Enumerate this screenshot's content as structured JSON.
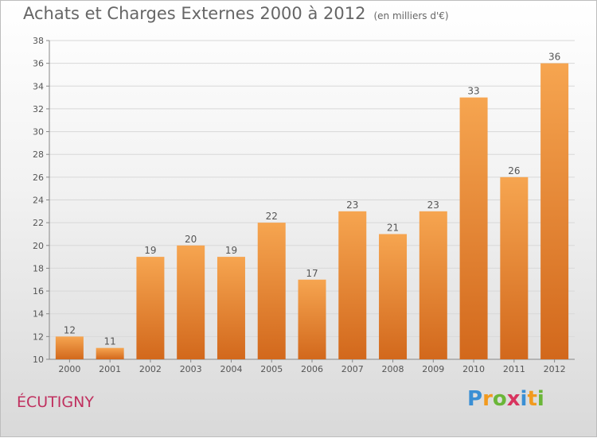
{
  "title": "Achats et Charges Externes 2000 à 2012",
  "subtitle": "(en milliers d'€)",
  "place_name": "ÉCUTIGNY",
  "logo": {
    "text": "Proxiti",
    "letters": [
      "P",
      "r",
      "o",
      "x",
      "i",
      "t",
      "i"
    ],
    "colors": [
      "#3a8fd4",
      "#f29a1e",
      "#6ab638",
      "#d8345f",
      "#3a8fd4",
      "#f29a1e",
      "#6ab638"
    ]
  },
  "colors": {
    "bar_top": "#f6a550",
    "bar_bottom": "#d2681c",
    "text": "#555555",
    "grid": "#d8d8d8"
  },
  "chart_data": {
    "type": "bar",
    "categories": [
      "2000",
      "2001",
      "2002",
      "2003",
      "2004",
      "2005",
      "2006",
      "2007",
      "2008",
      "2009",
      "2010",
      "2011",
      "2012"
    ],
    "values": [
      12,
      11,
      19,
      20,
      19,
      22,
      17,
      23,
      21,
      23,
      33,
      26,
      36
    ],
    "data_labels": [
      "12",
      "11",
      "19",
      "20",
      "19",
      "22",
      "17",
      "23",
      "21",
      "23",
      "33",
      "26",
      "36"
    ],
    "ylim": [
      10,
      38
    ],
    "yticks": [
      "10",
      "12",
      "14",
      "16",
      "18",
      "20",
      "22",
      "24",
      "26",
      "28",
      "30",
      "32",
      "34",
      "36",
      "38"
    ],
    "grid": "horizontal",
    "legend": "none"
  }
}
